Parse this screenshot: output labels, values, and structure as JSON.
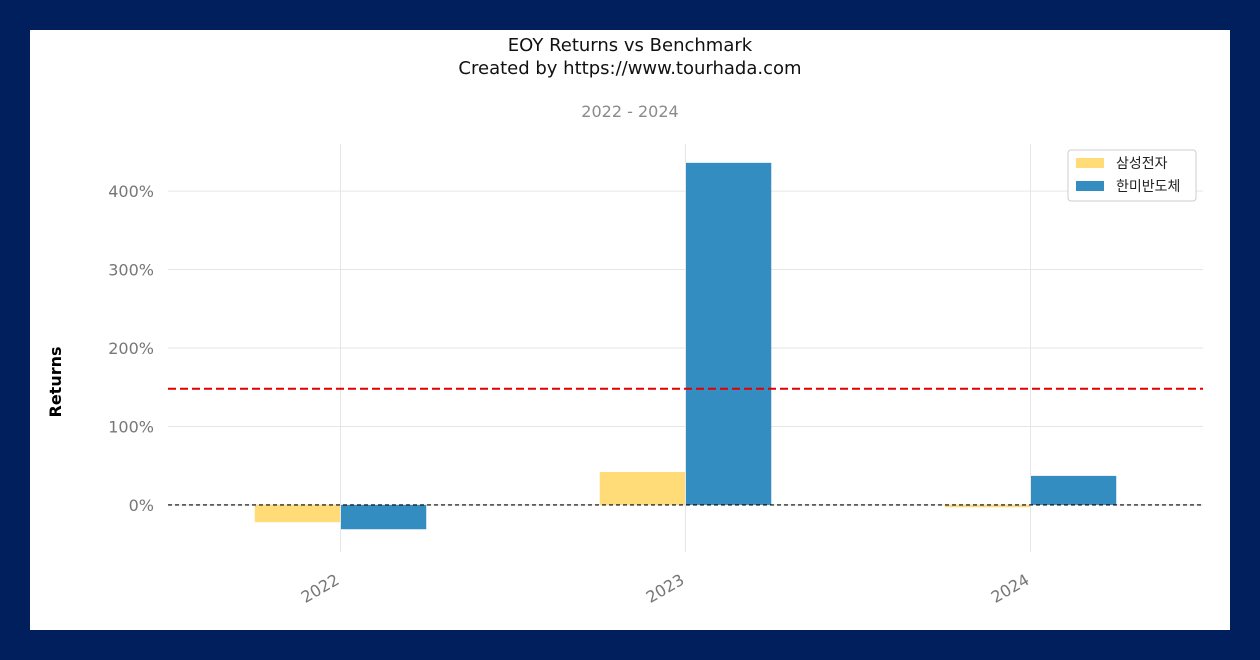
{
  "colors": {
    "background_frame": "#001f5c",
    "series_1": "#ffdc78",
    "series_2": "#348dc1",
    "benchmark_line": "#e00000",
    "zero_line": "#000000"
  },
  "chart_data": {
    "type": "bar",
    "title": "EOY Returns vs Benchmark",
    "subtitle": "Created by https://www.tourhada.com",
    "period": "2022 - 2024",
    "xlabel": "",
    "ylabel": "Returns",
    "categories": [
      "2022",
      "2023",
      "2024"
    ],
    "series": [
      {
        "name": "삼성전자",
        "values": [
          -22,
          42,
          -3
        ]
      },
      {
        "name": "한미반도체",
        "values": [
          -31,
          436,
          37
        ]
      }
    ],
    "yticks": [
      0,
      100,
      200,
      300,
      400
    ],
    "ytick_labels": [
      "0%",
      "100%",
      "200%",
      "300%",
      "400%"
    ],
    "ylim": [
      -60,
      460
    ],
    "unit": "%",
    "hlines": [
      {
        "role": "benchmark",
        "value": 148,
        "style": "dashed"
      },
      {
        "role": "zero",
        "value": 0,
        "style": "dashed"
      }
    ],
    "grid": true,
    "legend_position": "top-right"
  }
}
